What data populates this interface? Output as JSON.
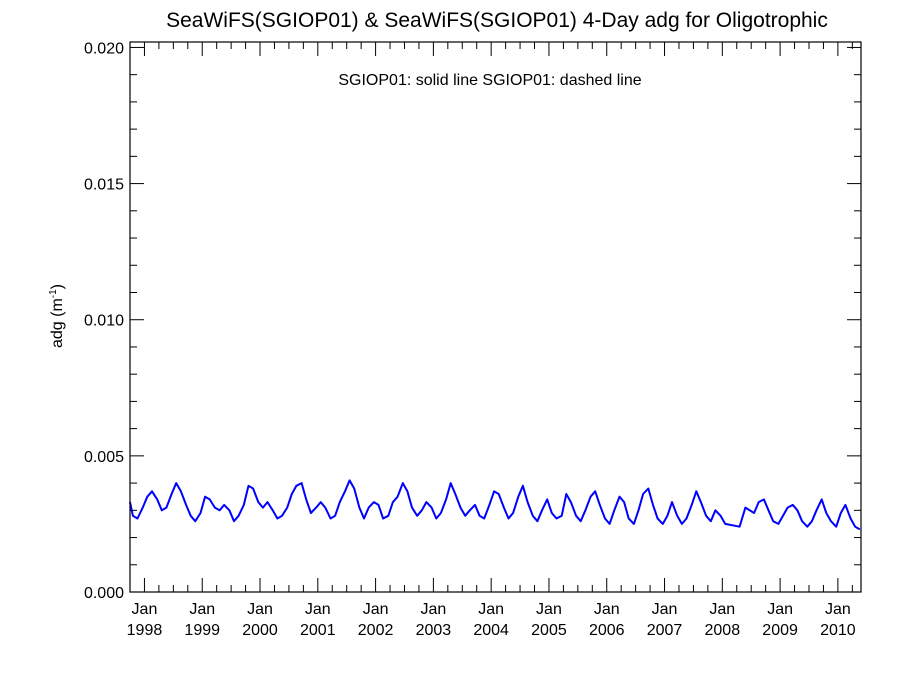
{
  "chart_data": {
    "type": "line",
    "title": "SeaWiFS(SGIOP01) & SeaWiFS(SGIOP01) 4-Day adg for Oligotrophic",
    "ylabel_main": "adg (m",
    "ylabel_sup": "-1",
    "ylabel_close": ")",
    "legend_text": "SGIOP01: solid line   SGIOP01: dashed line",
    "xlim": [
      1997.75,
      2010.4
    ],
    "ylim": [
      0.0,
      0.0202
    ],
    "yticks": [
      {
        "value": 0.0,
        "label": "0.000"
      },
      {
        "value": 0.005,
        "label": "0.005"
      },
      {
        "value": 0.01,
        "label": "0.010"
      },
      {
        "value": 0.015,
        "label": "0.015"
      },
      {
        "value": 0.02,
        "label": "0.020"
      }
    ],
    "xticks": [
      {
        "value": 1998,
        "month": "Jan",
        "year": "1998"
      },
      {
        "value": 1999,
        "month": "Jan",
        "year": "1999"
      },
      {
        "value": 2000,
        "month": "Jan",
        "year": "2000"
      },
      {
        "value": 2001,
        "month": "Jan",
        "year": "2001"
      },
      {
        "value": 2002,
        "month": "Jan",
        "year": "2002"
      },
      {
        "value": 2003,
        "month": "Jan",
        "year": "2003"
      },
      {
        "value": 2004,
        "month": "Jan",
        "year": "2004"
      },
      {
        "value": 2005,
        "month": "Jan",
        "year": "2005"
      },
      {
        "value": 2006,
        "month": "Jan",
        "year": "2006"
      },
      {
        "value": 2007,
        "month": "Jan",
        "year": "2007"
      },
      {
        "value": 2008,
        "month": "Jan",
        "year": "2008"
      },
      {
        "value": 2009,
        "month": "Jan",
        "year": "2009"
      },
      {
        "value": 2010,
        "month": "Jan",
        "year": "2010"
      }
    ],
    "grid": false,
    "series": [
      {
        "style": "solid",
        "color": "#0000ff",
        "x": [
          1997.75,
          1997.8,
          1997.88,
          1997.97,
          1998.05,
          1998.13,
          1998.22,
          1998.3,
          1998.38,
          1998.47,
          1998.55,
          1998.63,
          1998.72,
          1998.8,
          1998.88,
          1998.97,
          1999.05,
          1999.13,
          1999.22,
          1999.3,
          1999.38,
          1999.47,
          1999.55,
          1999.63,
          1999.72,
          1999.8,
          1999.88,
          1999.97,
          2000.05,
          2000.13,
          2000.22,
          2000.3,
          2000.38,
          2000.47,
          2000.55,
          2000.63,
          2000.72,
          2000.8,
          2000.88,
          2000.97,
          2001.05,
          2001.13,
          2001.22,
          2001.3,
          2001.38,
          2001.47,
          2001.55,
          2001.63,
          2001.72,
          2001.8,
          2001.88,
          2001.97,
          2002.05,
          2002.13,
          2002.22,
          2002.3,
          2002.38,
          2002.47,
          2002.55,
          2002.63,
          2002.72,
          2002.8,
          2002.88,
          2002.97,
          2003.05,
          2003.13,
          2003.22,
          2003.3,
          2003.38,
          2003.47,
          2003.55,
          2003.63,
          2003.72,
          2003.8,
          2003.88,
          2003.97,
          2004.05,
          2004.13,
          2004.22,
          2004.3,
          2004.38,
          2004.47,
          2004.55,
          2004.63,
          2004.72,
          2004.8,
          2004.88,
          2004.97,
          2005.05,
          2005.13,
          2005.22,
          2005.3,
          2005.38,
          2005.47,
          2005.55,
          2005.63,
          2005.72,
          2005.8,
          2005.88,
          2005.97,
          2006.05,
          2006.13,
          2006.22,
          2006.3,
          2006.38,
          2006.47,
          2006.55,
          2006.63,
          2006.72,
          2006.8,
          2006.88,
          2006.97,
          2007.05,
          2007.13,
          2007.22,
          2007.3,
          2007.38,
          2007.47,
          2007.55,
          2007.63,
          2007.72,
          2007.8,
          2007.88,
          2007.97,
          2008.05,
          2008.3,
          2008.4,
          2008.55,
          2008.63,
          2008.72,
          2008.8,
          2008.88,
          2008.97,
          2009.05,
          2009.13,
          2009.22,
          2009.3,
          2009.38,
          2009.47,
          2009.55,
          2009.63,
          2009.72,
          2009.8,
          2009.88,
          2009.97,
          2010.05,
          2010.13,
          2010.22,
          2010.3,
          2010.38
        ],
        "y": [
          0.0033,
          0.0028,
          0.0027,
          0.0031,
          0.0035,
          0.0037,
          0.0034,
          0.003,
          0.0031,
          0.0036,
          0.004,
          0.0037,
          0.0032,
          0.0028,
          0.0026,
          0.0029,
          0.0035,
          0.0034,
          0.0031,
          0.003,
          0.0032,
          0.003,
          0.0026,
          0.0028,
          0.0032,
          0.0039,
          0.0038,
          0.0033,
          0.0031,
          0.0033,
          0.003,
          0.0027,
          0.0028,
          0.0031,
          0.0036,
          0.0039,
          0.004,
          0.0034,
          0.0029,
          0.0031,
          0.0033,
          0.0031,
          0.0027,
          0.0028,
          0.0033,
          0.0037,
          0.0041,
          0.0038,
          0.0031,
          0.0027,
          0.0031,
          0.0033,
          0.0032,
          0.0027,
          0.0028,
          0.0033,
          0.0035,
          0.004,
          0.0037,
          0.0031,
          0.0028,
          0.003,
          0.0033,
          0.0031,
          0.0027,
          0.0029,
          0.0034,
          0.004,
          0.0036,
          0.0031,
          0.0028,
          0.003,
          0.0032,
          0.0028,
          0.0027,
          0.0032,
          0.0037,
          0.0036,
          0.0031,
          0.0027,
          0.0029,
          0.0035,
          0.0039,
          0.0033,
          0.0028,
          0.0026,
          0.003,
          0.0034,
          0.0029,
          0.0027,
          0.0028,
          0.0036,
          0.0033,
          0.0028,
          0.0026,
          0.003,
          0.0035,
          0.0037,
          0.0032,
          0.0027,
          0.0025,
          0.003,
          0.0035,
          0.0033,
          0.0027,
          0.0025,
          0.003,
          0.0036,
          0.0038,
          0.0032,
          0.0027,
          0.0025,
          0.0028,
          0.0033,
          0.0028,
          0.0025,
          0.0027,
          0.0032,
          0.0037,
          0.0033,
          0.0028,
          0.0026,
          0.003,
          0.0028,
          0.0025,
          0.0024,
          0.0031,
          0.0029,
          0.0033,
          0.0034,
          0.003,
          0.0026,
          0.0025,
          0.0028,
          0.0031,
          0.0032,
          0.003,
          0.0026,
          0.0024,
          0.0026,
          0.003,
          0.0034,
          0.0029,
          0.0026,
          0.0024,
          0.0029,
          0.0032,
          0.0027,
          0.0024,
          0.0023
        ]
      }
    ]
  }
}
